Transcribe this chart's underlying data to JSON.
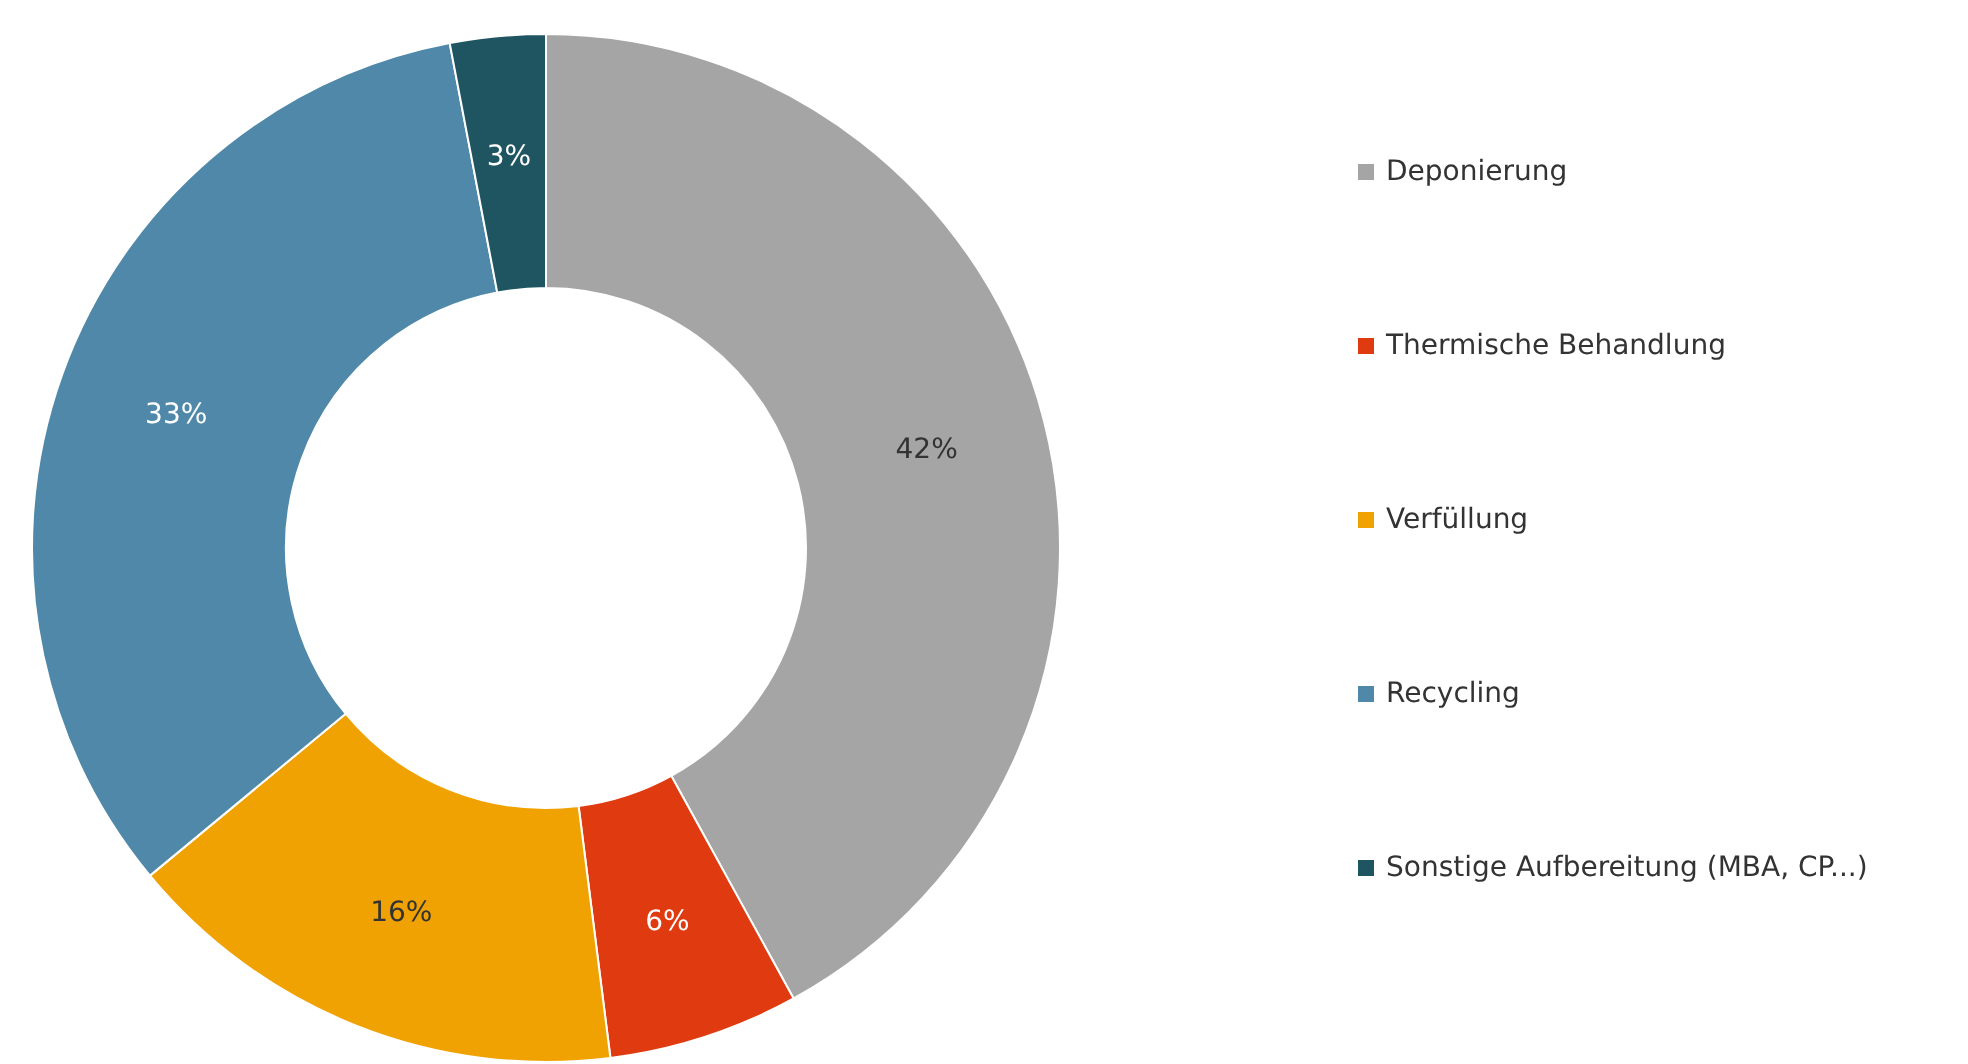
{
  "chart_data": {
    "type": "donut",
    "categories": [
      "Deponierung",
      "Thermische Behandlung",
      "Verfüllung",
      "Recycling",
      "Sonstige Aufbereitung (MBA, CP...)"
    ],
    "values": [
      42,
      6,
      16,
      33,
      3
    ],
    "colors": [
      "#a5a5a5",
      "#e03a10",
      "#f0a202",
      "#4f88a8",
      "#1f5560"
    ],
    "value_labels": [
      "42%",
      "6%",
      "16%",
      "33%",
      "3%"
    ],
    "legend": "right"
  }
}
